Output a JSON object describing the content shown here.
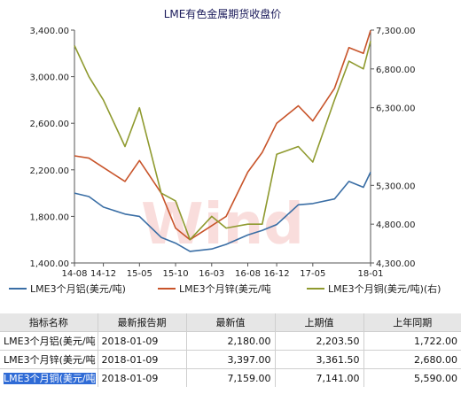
{
  "chart_data": {
    "type": "line",
    "title": "LME有色金属期货收盘价",
    "x_ticks": [
      "14-08",
      "14-12",
      "15-05",
      "15-10",
      "16-03",
      "16-08",
      "16-12",
      "17-05",
      "18-01"
    ],
    "left_axis": {
      "ticks": [
        "1,400.00",
        "1,800.00",
        "2,200.00",
        "2,600.00",
        "3,000.00",
        "3,400.00"
      ],
      "ylim": [
        1400,
        3400
      ]
    },
    "right_axis": {
      "ticks": [
        "4,300.00",
        "4,800.00",
        "5,300.00",
        "6,300.00",
        "6,800.00",
        "7,300.00"
      ],
      "ylim": [
        4300,
        7300
      ]
    },
    "series": [
      {
        "name": "LME3个月铝(美元/吨)",
        "axis": "left",
        "color": "#3a6ea5",
        "x": [
          "14-08",
          "14-10",
          "14-12",
          "15-03",
          "15-05",
          "15-08",
          "15-10",
          "15-12",
          "16-03",
          "16-05",
          "16-08",
          "16-10",
          "16-12",
          "17-03",
          "17-05",
          "17-08",
          "17-10",
          "17-12",
          "18-01"
        ],
        "values": [
          2000,
          1970,
          1880,
          1820,
          1800,
          1620,
          1570,
          1500,
          1520,
          1560,
          1640,
          1680,
          1730,
          1900,
          1910,
          1950,
          2100,
          2050,
          2180
        ]
      },
      {
        "name": "LME3个月锌(美元/吨",
        "axis": "left",
        "color": "#c8542a",
        "x": [
          "14-08",
          "14-10",
          "14-12",
          "15-03",
          "15-05",
          "15-08",
          "15-10",
          "15-12",
          "16-03",
          "16-05",
          "16-08",
          "16-10",
          "16-12",
          "17-03",
          "17-05",
          "17-08",
          "17-10",
          "17-12",
          "18-01"
        ],
        "values": [
          2320,
          2300,
          2220,
          2100,
          2280,
          2000,
          1700,
          1600,
          1720,
          1800,
          2180,
          2350,
          2600,
          2750,
          2620,
          2900,
          3250,
          3200,
          3397
        ]
      },
      {
        "name": "LME3个月铜(美元/吨)(右)",
        "axis": "right",
        "color": "#8f9a2f",
        "x": [
          "14-08",
          "14-10",
          "14-12",
          "15-03",
          "15-05",
          "15-08",
          "15-10",
          "15-12",
          "16-03",
          "16-05",
          "16-08",
          "16-10",
          "16-12",
          "17-03",
          "17-05",
          "17-08",
          "17-10",
          "17-12",
          "18-01"
        ],
        "values": [
          7100,
          6700,
          6400,
          5800,
          6300,
          5200,
          5100,
          4600,
          4900,
          4750,
          4800,
          4800,
          5700,
          5800,
          5600,
          6400,
          6900,
          6800,
          7159
        ]
      }
    ],
    "grid": false,
    "legend_position": "bottom",
    "watermark": "Wind"
  },
  "table": {
    "headers": [
      "指标名称",
      "最新报告期",
      "最新值",
      "上期值",
      "上年同期"
    ],
    "rows": [
      {
        "name": "LME3个月铝(美元/吨",
        "date": "2018-01-09",
        "latest": "2,180.00",
        "previous": "2,203.50",
        "last_year": "1,722.00"
      },
      {
        "name": "LME3个月锌(美元/吨",
        "date": "2018-01-09",
        "latest": "3,397.00",
        "previous": "3,361.50",
        "last_year": "2,680.00"
      },
      {
        "name": "LME3个月铜(美元/吨",
        "date": "2018-01-09",
        "latest": "7,159.00",
        "previous": "7,141.00",
        "last_year": "5,590.00"
      }
    ]
  }
}
